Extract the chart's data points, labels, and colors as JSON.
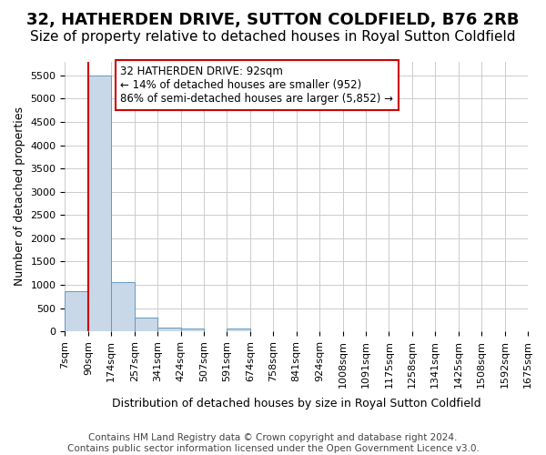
{
  "title": "32, HATHERDEN DRIVE, SUTTON COLDFIELD, B76 2RB",
  "subtitle": "Size of property relative to detached houses in Royal Sutton Coldfield",
  "xlabel": "Distribution of detached houses by size in Royal Sutton Coldfield",
  "ylabel": "Number of detached properties",
  "footer_line1": "Contains HM Land Registry data © Crown copyright and database right 2024.",
  "footer_line2": "Contains public sector information licensed under the Open Government Licence v3.0.",
  "annotation_title": "32 HATHERDEN DRIVE: 92sqm",
  "annotation_line1": "← 14% of detached houses are smaller (952)",
  "annotation_line2": "86% of semi-detached houses are larger (5,852) →",
  "bar_color": "#c8d8e8",
  "bar_edge_color": "#6699bb",
  "red_line_color": "#cc0000",
  "grid_color": "#cccccc",
  "background_color": "#ffffff",
  "x_labels": [
    "7sqm",
    "90sqm",
    "174sqm",
    "257sqm",
    "341sqm",
    "424sqm",
    "507sqm",
    "591sqm",
    "674sqm",
    "758sqm",
    "841sqm",
    "924sqm",
    "1008sqm",
    "1091sqm",
    "1175sqm",
    "1258sqm",
    "1341sqm",
    "1425sqm",
    "1508sqm",
    "1592sqm",
    "1675sqm"
  ],
  "bar_values": [
    870,
    5500,
    1050,
    290,
    90,
    70,
    0,
    60,
    0,
    0,
    0,
    0,
    0,
    0,
    0,
    0,
    0,
    0,
    0,
    0
  ],
  "ylim": [
    0,
    5800
  ],
  "yticks": [
    0,
    500,
    1000,
    1500,
    2000,
    2500,
    3000,
    3500,
    4000,
    4500,
    5000,
    5500
  ],
  "red_line_x": 0.5,
  "title_fontsize": 13,
  "subtitle_fontsize": 11,
  "axis_label_fontsize": 9,
  "tick_fontsize": 8,
  "annotation_fontsize": 8.5,
  "footer_fontsize": 7.5
}
